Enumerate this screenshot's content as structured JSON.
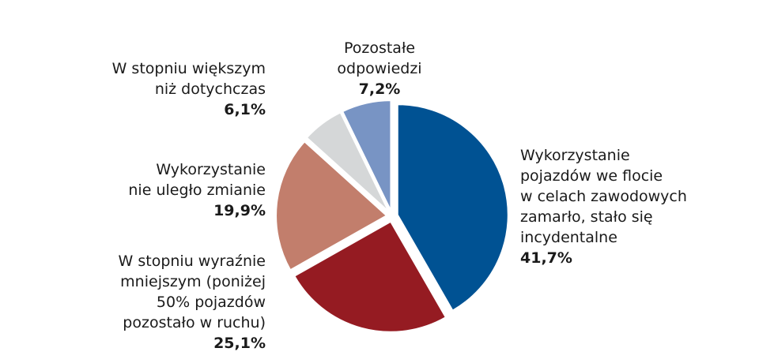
{
  "chart_data": {
    "type": "pie",
    "title": "",
    "slices": [
      {
        "label_lines": [
          "Wykorzystanie",
          "pojazdów we flocie",
          "w celach zawodowych",
          "zamarło, stało się",
          "incydentalne"
        ],
        "value": 41.7,
        "value_label": "41,7%",
        "color": "#005293"
      },
      {
        "label_lines": [
          "W stopniu wyraźnie",
          "mniejszym (poniżej",
          "50% pojazdów",
          "pozostało w ruchu)"
        ],
        "value": 25.1,
        "value_label": "25,1%",
        "color": "#951b22"
      },
      {
        "label_lines": [
          "Wykorzystanie",
          "nie uległo zmianie"
        ],
        "value": 19.9,
        "value_label": "19,9%",
        "color": "#c27e6c"
      },
      {
        "label_lines": [
          "W stopniu większym",
          "niż dotychczas"
        ],
        "value": 6.1,
        "value_label": "6,1%",
        "color": "#d5d7d8"
      },
      {
        "label_lines": [
          "Pozostałe",
          "odpowiedzi"
        ],
        "value": 7.2,
        "value_label": "7,2%",
        "color": "#7894c4"
      }
    ]
  }
}
